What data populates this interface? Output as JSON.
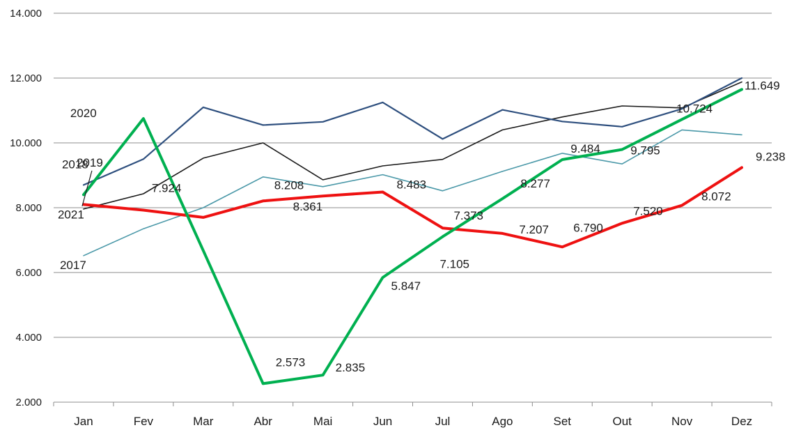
{
  "chart_data": {
    "type": "line",
    "categories": [
      "Jan",
      "Fev",
      "Mar",
      "Abr",
      "Mai",
      "Jun",
      "Jul",
      "Ago",
      "Set",
      "Out",
      "Nov",
      "Dez"
    ],
    "ylim": [
      2000,
      14000
    ],
    "yticks": [
      2000,
      4000,
      6000,
      8000,
      10000,
      12000,
      14000
    ],
    "ytick_labels": [
      "2.000",
      "4.000",
      "6.000",
      "8.000",
      "10.000",
      "12.000",
      "14.000"
    ],
    "grid": true,
    "legend": "none",
    "series": [
      {
        "name": "2017",
        "color": "#4a98a8",
        "values": [
          6520,
          7350,
          8000,
          8950,
          8650,
          9020,
          8520,
          9120,
          9680,
          9350,
          10400,
          10250
        ],
        "label_point": 0
      },
      {
        "name": "2018",
        "color": "#2e4f7e",
        "values": [
          8700,
          9500,
          11100,
          10550,
          10650,
          11250,
          10120,
          11020,
          10660,
          10500,
          11050,
          12000
        ],
        "label_point": 0
      },
      {
        "name": "2019",
        "color": "#1a1a1a",
        "values": [
          7960,
          8430,
          9530,
          10000,
          8860,
          9290,
          9490,
          10400,
          10800,
          11140,
          11080,
          11880
        ],
        "label_point": 0
      },
      {
        "name": "2020",
        "color": "#00b050",
        "values": [
          8400,
          10750,
          6680,
          2573,
          2835,
          5847,
          7105,
          8277,
          9484,
          9795,
          10724,
          11649
        ],
        "data_labels": [
          "",
          "",
          "",
          "2.573",
          "2.835",
          "5.847",
          "7.105",
          "8.277",
          "9.484",
          "9.795",
          "10.724",
          "11.649"
        ],
        "label_point": 1
      },
      {
        "name": "2021",
        "color": "#ee1111",
        "values": [
          8100,
          7924,
          7700,
          8208,
          8361,
          8483,
          7373,
          7207,
          6790,
          7520,
          8072,
          9238
        ],
        "data_labels": [
          "",
          "7.924",
          "",
          "8.208",
          "8.361",
          "8.483",
          "7.373",
          "7.207",
          "6.790",
          "7.520",
          "8.072",
          "9.238"
        ],
        "label_point": 0
      }
    ]
  }
}
